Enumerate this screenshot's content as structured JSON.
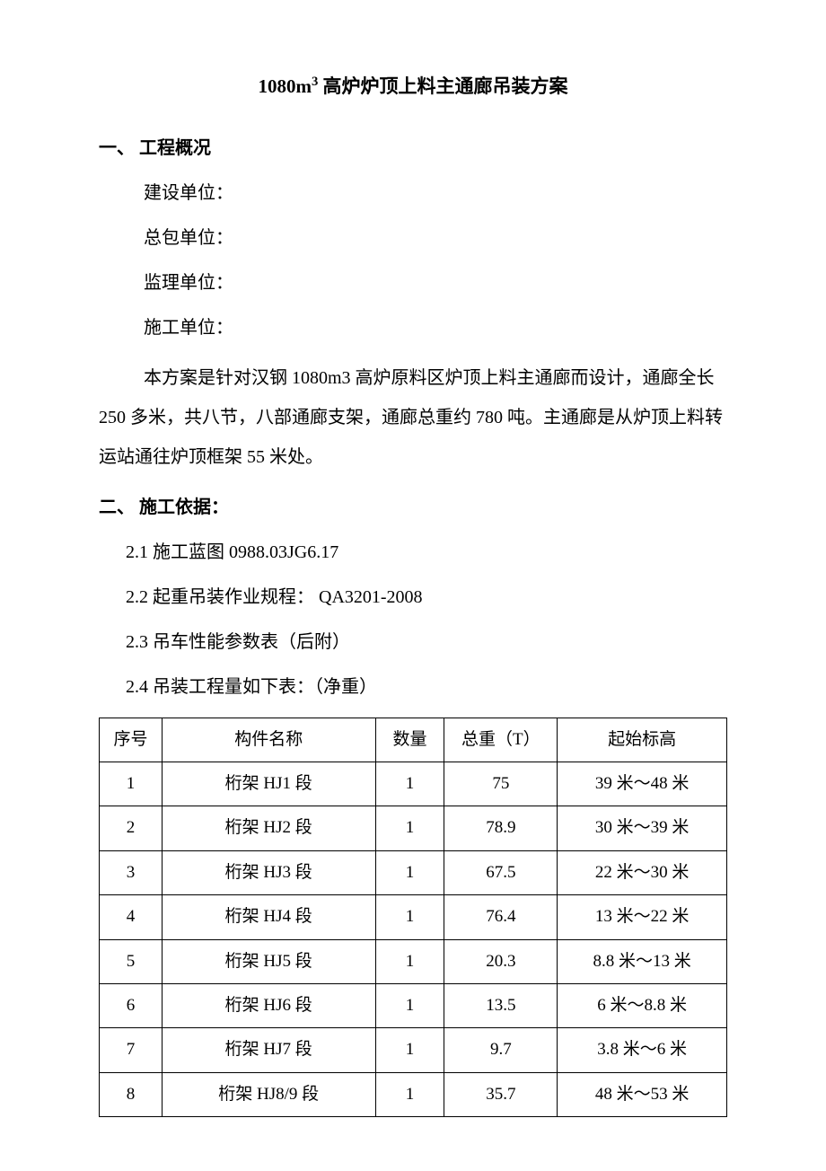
{
  "title_prefix": "1080m",
  "title_sup": "3",
  "title_suffix": " 高炉炉顶上料主通廊吊装方案",
  "section1_heading": "一、 工程概况",
  "section1_lines": [
    "建设单位：",
    "总包单位：",
    "监理单位：",
    "施工单位："
  ],
  "section1_paragraph": "本方案是针对汉钢 1080m3 高炉原料区炉顶上料主通廊而设计，通廊全长250 多米，共八节，八部通廊支架，通廊总重约 780 吨。主通廊是从炉顶上料转运站通往炉顶框架 55 米处。",
  "section2_heading": "二、 施工依据：",
  "section2_items": [
    "2.1 施工蓝图 0988.03JG6.17",
    "2.2 起重吊装作业规程：  QA3201-2008",
    "2.3 吊车性能参数表（后附）",
    "2.4 吊装工程量如下表：（净重）"
  ],
  "table": {
    "headers": [
      "序号",
      "构件名称",
      "数量",
      "总重（T）",
      "起始标高"
    ],
    "rows": [
      [
        "1",
        "桁架 HJ1 段",
        "1",
        "75",
        "39 米～48 米"
      ],
      [
        "2",
        "桁架 HJ2 段",
        "1",
        "78.9",
        "30 米～39 米"
      ],
      [
        "3",
        "桁架 HJ3 段",
        "1",
        "67.5",
        "22 米～30 米"
      ],
      [
        "4",
        "桁架 HJ4 段",
        "1",
        "76.4",
        "13 米～22 米"
      ],
      [
        "5",
        "桁架 HJ5 段",
        "1",
        "20.3",
        "8.8 米～13 米"
      ],
      [
        "6",
        "桁架 HJ6 段",
        "1",
        "13.5",
        "6 米～8.8 米"
      ],
      [
        "7",
        "桁架 HJ7 段",
        "1",
        "9.7",
        "3.8 米～6 米"
      ],
      [
        "8",
        "桁架 HJ8/9 段",
        "1",
        "35.7",
        "48 米～53 米"
      ]
    ]
  }
}
